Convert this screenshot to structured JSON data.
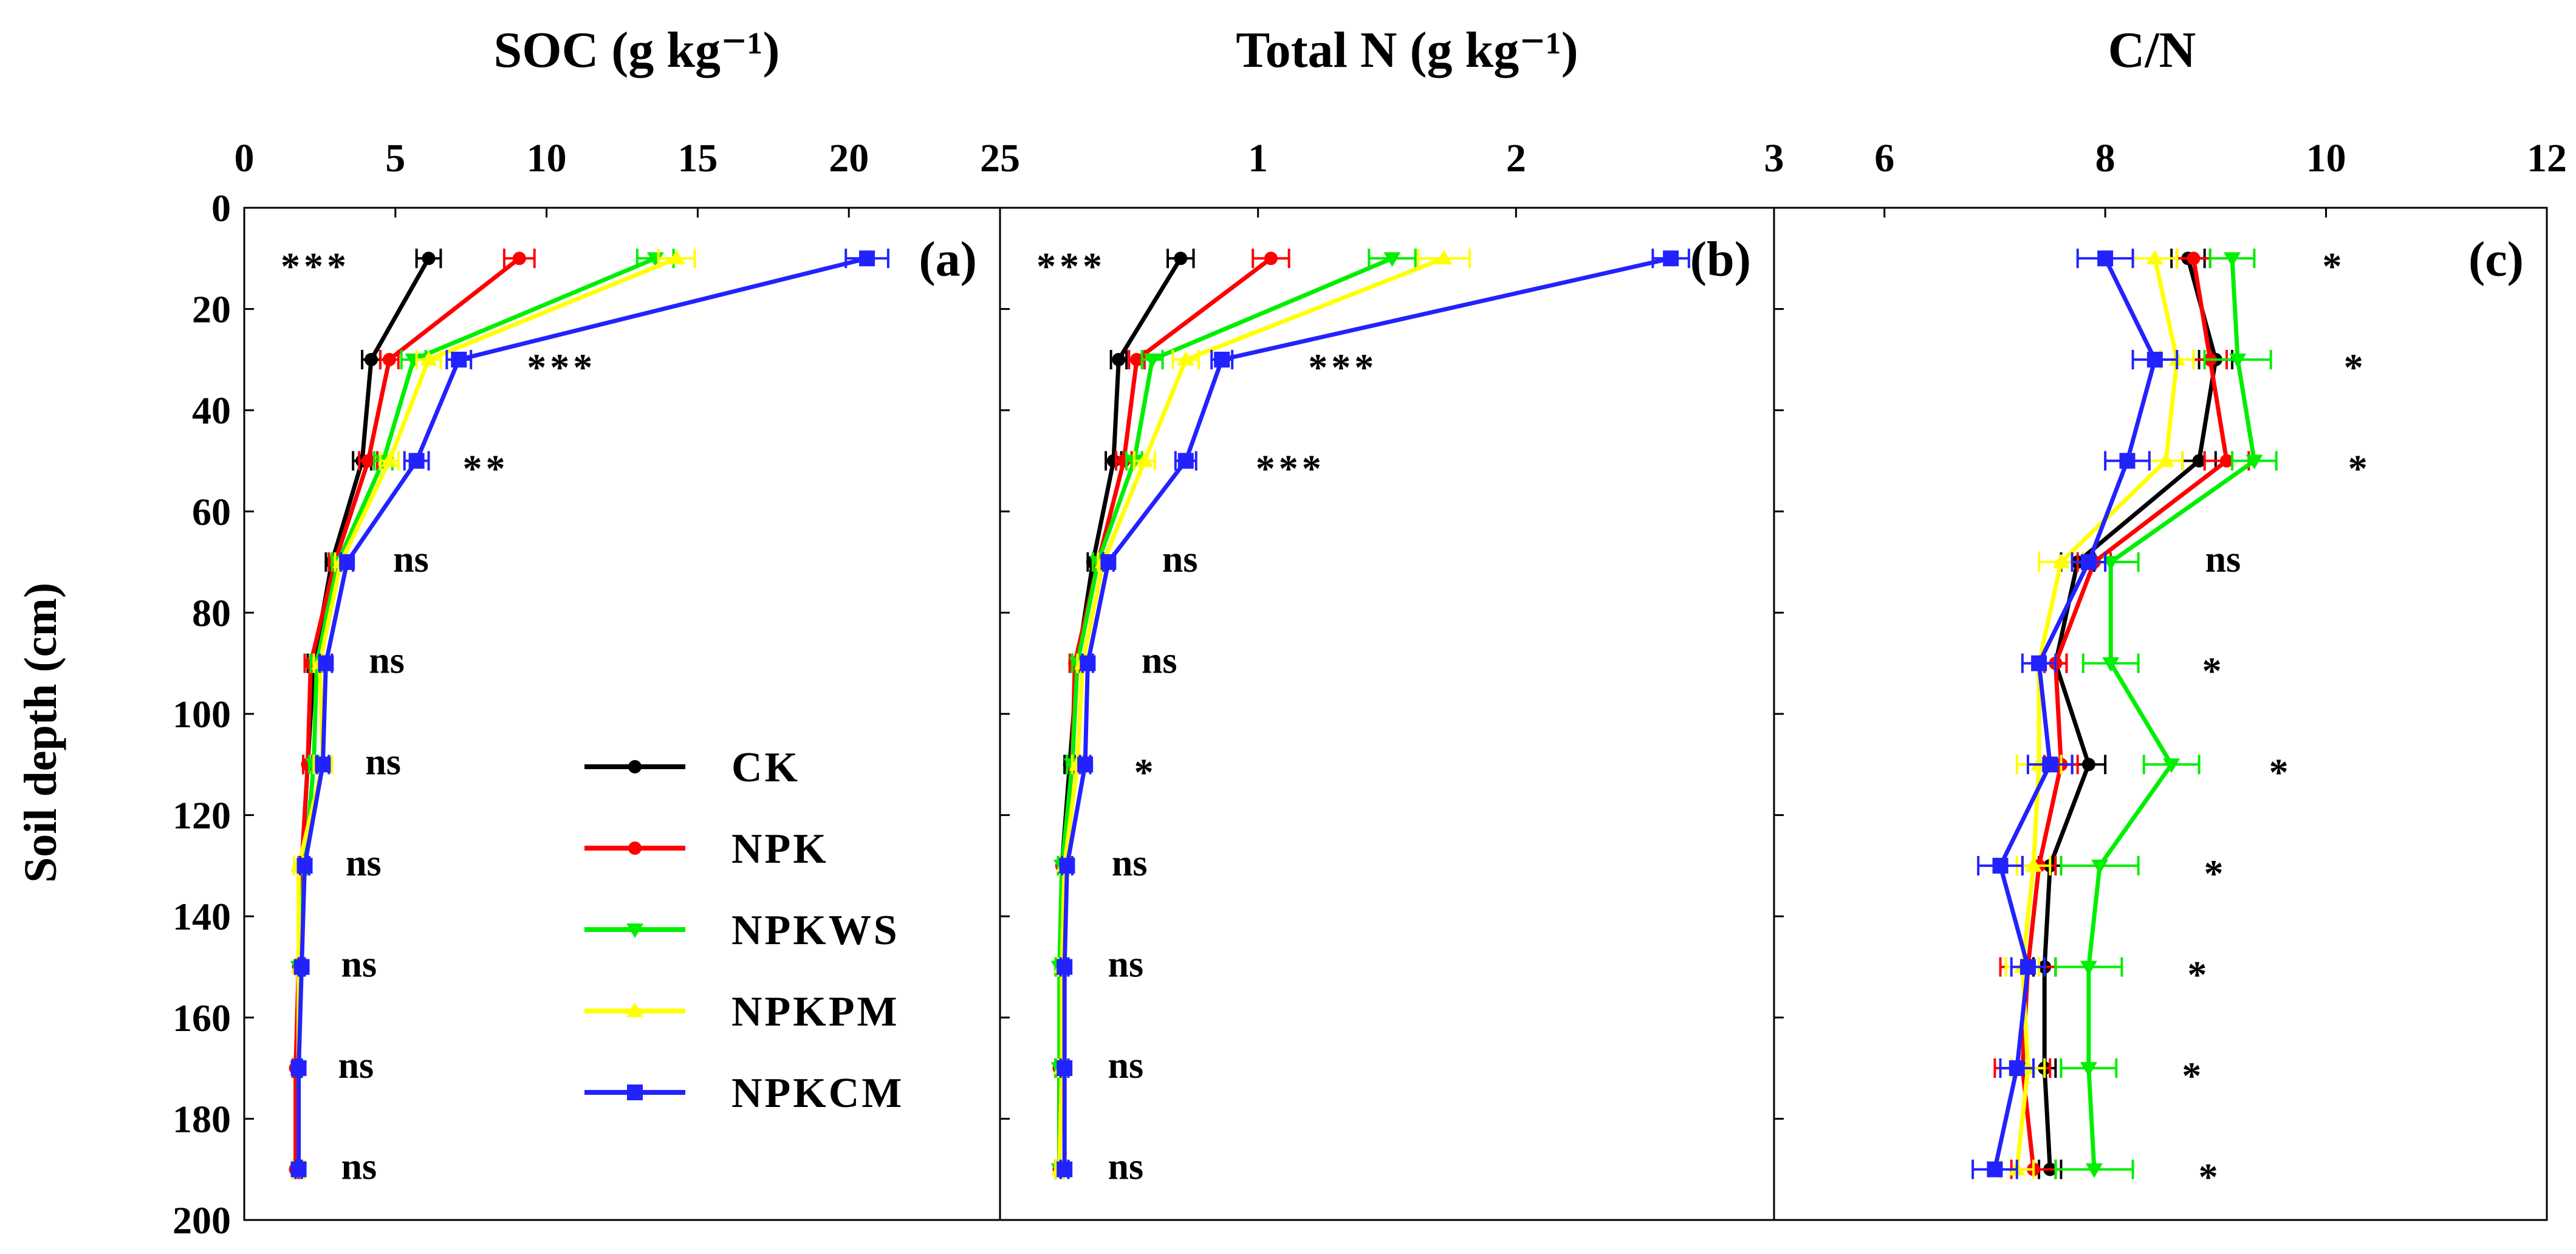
{
  "figure": {
    "ylabel": "Soil depth (cm)",
    "ylim": [
      200,
      0
    ],
    "yticks": [
      0,
      20,
      40,
      60,
      80,
      100,
      120,
      140,
      160,
      180,
      200
    ],
    "depths": [
      10,
      30,
      50,
      70,
      90,
      110,
      130,
      150,
      170,
      190
    ],
    "legend": {
      "placement": "inside-panel-a-bottom-right",
      "entries": [
        {
          "name": "CK",
          "color": "#000000",
          "marker": "circle"
        },
        {
          "name": "NPK",
          "color": "#ff0000",
          "marker": "circle"
        },
        {
          "name": "NPKWS",
          "color": "#00ee00",
          "marker": "triangle-down"
        },
        {
          "name": "NPKPM",
          "color": "#ffff00",
          "marker": "triangle-up"
        },
        {
          "name": "NPKCM",
          "color": "#2222ff",
          "marker": "square"
        }
      ]
    }
  },
  "chart_data": [
    {
      "type": "line",
      "panel_label": "(a)",
      "title": "SOC (g kg⁻¹)",
      "xlim": [
        0,
        25
      ],
      "xticks": [
        0,
        5,
        10,
        15,
        20,
        25
      ],
      "significance": [
        "***",
        "***",
        "**",
        "ns",
        "ns",
        "ns",
        "ns",
        "ns",
        "ns",
        "ns"
      ],
      "series": [
        {
          "name": "CK",
          "values": [
            6.1,
            4.2,
            3.9,
            2.9,
            2.3,
            2.1,
            1.9,
            1.8,
            1.8,
            1.7
          ],
          "errors": [
            0.4,
            0.3,
            0.3,
            0.2,
            0.2,
            0.15,
            0.1,
            0.1,
            0.1,
            0.1
          ]
        },
        {
          "name": "NPK",
          "values": [
            9.1,
            4.8,
            4.1,
            3.0,
            2.2,
            2.1,
            1.9,
            1.8,
            1.7,
            1.7
          ],
          "errors": [
            0.5,
            0.3,
            0.3,
            0.2,
            0.2,
            0.15,
            0.1,
            0.1,
            0.1,
            0.1
          ]
        },
        {
          "name": "NPKWS",
          "values": [
            13.6,
            5.6,
            4.6,
            3.1,
            2.4,
            2.3,
            2.0,
            1.8,
            1.8,
            1.8
          ],
          "errors": [
            0.6,
            0.4,
            0.3,
            0.2,
            0.2,
            0.15,
            0.1,
            0.1,
            0.1,
            0.1
          ]
        },
        {
          "name": "NPKPM",
          "values": [
            14.3,
            6.1,
            4.8,
            3.2,
            2.5,
            2.6,
            1.8,
            1.8,
            1.8,
            1.8
          ],
          "errors": [
            0.6,
            0.4,
            0.3,
            0.2,
            0.2,
            0.3,
            0.15,
            0.1,
            0.1,
            0.2
          ]
        },
        {
          "name": "NPKCM",
          "values": [
            20.6,
            7.1,
            5.7,
            3.4,
            2.7,
            2.6,
            2.0,
            1.9,
            1.8,
            1.8
          ],
          "errors": [
            0.7,
            0.4,
            0.4,
            0.2,
            0.2,
            0.2,
            0.15,
            0.1,
            0.1,
            0.1
          ]
        }
      ]
    },
    {
      "type": "line",
      "panel_label": "(b)",
      "title": "Total N (g kg⁻¹)",
      "xlim": [
        0,
        3
      ],
      "xticks": [
        1,
        2,
        3
      ],
      "significance": [
        "***",
        "***",
        "***",
        "ns",
        "ns",
        "*",
        "ns",
        "ns",
        "ns",
        "ns"
      ],
      "series": [
        {
          "name": "CK",
          "values": [
            0.7,
            0.46,
            0.44,
            0.36,
            0.3,
            0.27,
            0.24,
            0.24,
            0.23,
            0.23
          ],
          "errors": [
            0.05,
            0.03,
            0.03,
            0.02,
            0.02,
            0.02,
            0.015,
            0.015,
            0.015,
            0.015
          ]
        },
        {
          "name": "NPK",
          "values": [
            1.05,
            0.53,
            0.48,
            0.38,
            0.29,
            0.28,
            0.24,
            0.24,
            0.23,
            0.23
          ],
          "errors": [
            0.07,
            0.03,
            0.03,
            0.02,
            0.02,
            0.02,
            0.015,
            0.015,
            0.015,
            0.015
          ]
        },
        {
          "name": "NPKWS",
          "values": [
            1.52,
            0.59,
            0.52,
            0.38,
            0.3,
            0.28,
            0.24,
            0.23,
            0.23,
            0.23
          ],
          "errors": [
            0.09,
            0.04,
            0.03,
            0.02,
            0.02,
            0.02,
            0.015,
            0.015,
            0.015,
            0.015
          ]
        },
        {
          "name": "NPKPM",
          "values": [
            1.72,
            0.72,
            0.56,
            0.4,
            0.32,
            0.3,
            0.25,
            0.24,
            0.24,
            0.23
          ],
          "errors": [
            0.1,
            0.05,
            0.04,
            0.02,
            0.02,
            0.02,
            0.015,
            0.015,
            0.015,
            0.015
          ]
        },
        {
          "name": "NPKCM",
          "values": [
            2.6,
            0.86,
            0.72,
            0.42,
            0.34,
            0.33,
            0.26,
            0.25,
            0.25,
            0.25
          ],
          "errors": [
            0.07,
            0.04,
            0.04,
            0.02,
            0.02,
            0.02,
            0.02,
            0.015,
            0.015,
            0.015
          ]
        }
      ]
    },
    {
      "type": "line",
      "panel_label": "(c)",
      "title": "C/N",
      "xlim": [
        5,
        12
      ],
      "xticks": [
        6,
        8,
        10,
        12
      ],
      "significance": [
        "*",
        "*",
        "*",
        "ns",
        "*",
        "*",
        "*",
        "*",
        "*",
        "*"
      ],
      "series": [
        {
          "name": "CK",
          "values": [
            8.75,
            9.0,
            8.85,
            7.75,
            7.55,
            7.85,
            7.5,
            7.45,
            7.45,
            7.5
          ],
          "errors": [
            0.15,
            0.15,
            0.15,
            0.15,
            0.1,
            0.15,
            0.1,
            0.1,
            0.1,
            0.1
          ]
        },
        {
          "name": "NPK",
          "values": [
            8.8,
            8.95,
            9.1,
            7.9,
            7.55,
            7.6,
            7.4,
            7.3,
            7.25,
            7.35
          ],
          "errors": [
            0.15,
            0.15,
            0.2,
            0.15,
            0.1,
            0.15,
            0.15,
            0.25,
            0.25,
            0.2
          ]
        },
        {
          "name": "NPKWS",
          "values": [
            9.15,
            9.2,
            9.35,
            8.05,
            8.05,
            8.6,
            7.95,
            7.85,
            7.85,
            7.9
          ],
          "errors": [
            0.2,
            0.3,
            0.2,
            0.25,
            0.25,
            0.25,
            0.35,
            0.3,
            0.25,
            0.35
          ]
        },
        {
          "name": "NPKPM",
          "values": [
            8.45,
            8.65,
            8.55,
            7.6,
            7.4,
            7.4,
            7.35,
            7.25,
            7.3,
            7.2
          ],
          "errors": [
            0.2,
            0.15,
            0.15,
            0.2,
            0.15,
            0.2,
            0.15,
            0.15,
            0.15,
            0.15
          ]
        },
        {
          "name": "NPKCM",
          "values": [
            8.0,
            8.45,
            8.2,
            7.85,
            7.4,
            7.5,
            7.05,
            7.3,
            7.2,
            7.0
          ],
          "errors": [
            0.25,
            0.2,
            0.2,
            0.15,
            0.15,
            0.2,
            0.2,
            0.15,
            0.15,
            0.2
          ]
        }
      ]
    }
  ]
}
